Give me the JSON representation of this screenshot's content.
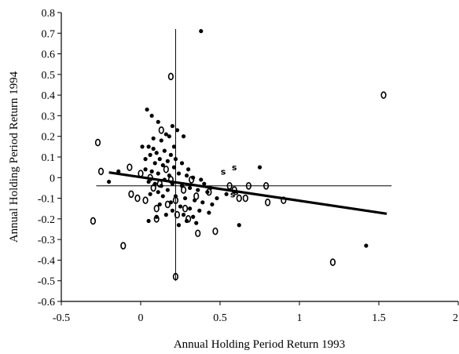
{
  "chart_data": {
    "type": "scatter",
    "title": "",
    "xlabel": "Annual Holding Period Return 1993",
    "ylabel": "Annual Holding Period Return 1994",
    "xlim": [
      -0.5,
      2
    ],
    "ylim": [
      -0.6,
      0.8
    ],
    "xticks": [
      "-0.5",
      "0",
      "0.5",
      "1",
      "1.5",
      "2"
    ],
    "yticks": [
      "-0.6",
      "-0.5",
      "-0.4",
      "-0.3",
      "-0.2",
      "-0.1",
      "0",
      "0.1",
      "0.2",
      "0.3",
      "0.4",
      "0.5",
      "0.6",
      "0.7",
      "0.8"
    ],
    "grid": false,
    "reference_lines": {
      "vertical_x": 0.22,
      "vertical_range": [
        -0.5,
        0.72
      ],
      "horizontal_y": -0.04,
      "horizontal_range": [
        -0.28,
        1.58
      ]
    },
    "trend_line": {
      "x": [
        -0.2,
        1.55
      ],
      "y": [
        0.025,
        -0.175
      ]
    },
    "series": [
      {
        "marker": "dot",
        "points": [
          [
            0.38,
            0.71
          ],
          [
            1.42,
            -0.33
          ],
          [
            0.04,
            0.33
          ],
          [
            0.07,
            0.3
          ],
          [
            0.11,
            0.27
          ],
          [
            0.2,
            0.25
          ],
          [
            0.23,
            0.23
          ],
          [
            0.27,
            0.2
          ],
          [
            0.18,
            0.2
          ],
          [
            0.13,
            0.18
          ],
          [
            0.01,
            0.15
          ],
          [
            0.05,
            0.15
          ],
          [
            0.08,
            0.14
          ],
          [
            0.21,
            0.15
          ],
          [
            0.15,
            0.13
          ],
          [
            0.1,
            0.12
          ],
          [
            0.19,
            0.11
          ],
          [
            0.06,
            0.11
          ],
          [
            0.03,
            0.09
          ],
          [
            0.12,
            0.09
          ],
          [
            0.17,
            0.08
          ],
          [
            0.22,
            0.09
          ],
          [
            0.26,
            0.07
          ],
          [
            0.09,
            0.07
          ],
          [
            0.14,
            0.06
          ],
          [
            0.21,
            0.05
          ],
          [
            0.03,
            0.04
          ],
          [
            0.07,
            0.03
          ],
          [
            0.11,
            0.02
          ],
          [
            0.18,
            0.01
          ],
          [
            0.24,
            0.02
          ],
          [
            0.29,
            0.01
          ],
          [
            0.33,
            0.0
          ],
          [
            0.38,
            -0.01
          ],
          [
            0.15,
            -0.01
          ],
          [
            0.05,
            -0.02
          ],
          [
            0.09,
            -0.03
          ],
          [
            0.13,
            -0.04
          ],
          [
            0.2,
            -0.03
          ],
          [
            0.26,
            -0.04
          ],
          [
            0.31,
            -0.05
          ],
          [
            0.36,
            -0.06
          ],
          [
            0.42,
            -0.07
          ],
          [
            0.17,
            -0.06
          ],
          [
            0.11,
            -0.07
          ],
          [
            0.06,
            -0.08
          ],
          [
            0.14,
            -0.09
          ],
          [
            0.22,
            -0.09
          ],
          [
            0.28,
            -0.1
          ],
          [
            0.34,
            -0.11
          ],
          [
            0.39,
            -0.12
          ],
          [
            0.45,
            -0.13
          ],
          [
            0.19,
            -0.12
          ],
          [
            0.12,
            -0.13
          ],
          [
            0.25,
            -0.14
          ],
          [
            0.31,
            -0.15
          ],
          [
            0.37,
            -0.16
          ],
          [
            0.43,
            -0.17
          ],
          [
            0.2,
            -0.16
          ],
          [
            0.27,
            -0.18
          ],
          [
            0.33,
            -0.19
          ],
          [
            0.16,
            -0.18
          ],
          [
            0.1,
            -0.19
          ],
          [
            0.29,
            -0.21
          ],
          [
            0.35,
            -0.22
          ],
          [
            0.05,
            -0.21
          ],
          [
            0.62,
            -0.23
          ],
          [
            0.75,
            0.05
          ],
          [
            0.54,
            -0.08
          ],
          [
            0.48,
            -0.1
          ],
          [
            -0.2,
            -0.02
          ],
          [
            -0.14,
            0.03
          ],
          [
            0.4,
            -0.03
          ],
          [
            0.44,
            -0.05
          ],
          [
            0.3,
            0.04
          ],
          [
            0.24,
            -0.23
          ],
          [
            0.16,
            0.21
          ],
          [
            0.08,
            0.19
          ]
        ]
      },
      {
        "marker": "o",
        "points": [
          [
            0.19,
            0.49
          ],
          [
            1.53,
            0.4
          ],
          [
            0.13,
            0.23
          ],
          [
            -0.27,
            0.17
          ],
          [
            -0.25,
            0.03
          ],
          [
            -0.07,
            0.05
          ],
          [
            0.0,
            0.02
          ],
          [
            0.06,
            0.0
          ],
          [
            -0.02,
            -0.1
          ],
          [
            -0.06,
            -0.08
          ],
          [
            0.08,
            -0.05
          ],
          [
            0.12,
            -0.03
          ],
          [
            0.16,
            0.04
          ],
          [
            0.19,
            -0.01
          ],
          [
            0.03,
            -0.11
          ],
          [
            0.1,
            -0.15
          ],
          [
            0.17,
            -0.13
          ],
          [
            0.22,
            -0.11
          ],
          [
            0.27,
            -0.06
          ],
          [
            0.32,
            -0.01
          ],
          [
            0.35,
            -0.09
          ],
          [
            0.28,
            -0.15
          ],
          [
            0.23,
            -0.18
          ],
          [
            0.3,
            -0.2
          ],
          [
            0.36,
            -0.27
          ],
          [
            0.47,
            -0.26
          ],
          [
            0.43,
            -0.07
          ],
          [
            0.56,
            -0.04
          ],
          [
            0.59,
            -0.06
          ],
          [
            0.62,
            -0.1
          ],
          [
            0.68,
            -0.04
          ],
          [
            0.79,
            -0.04
          ],
          [
            0.66,
            -0.1
          ],
          [
            0.8,
            -0.12
          ],
          [
            0.9,
            -0.11
          ],
          [
            1.21,
            -0.41
          ],
          [
            0.22,
            -0.48
          ],
          [
            -0.11,
            -0.33
          ],
          [
            -0.3,
            -0.21
          ],
          [
            0.1,
            -0.2
          ]
        ]
      },
      {
        "marker": "s",
        "points": [
          [
            0.52,
            0.03
          ],
          [
            0.59,
            0.05
          ],
          [
            0.58,
            -0.08
          ],
          [
            0.6,
            -0.07
          ]
        ]
      }
    ]
  }
}
